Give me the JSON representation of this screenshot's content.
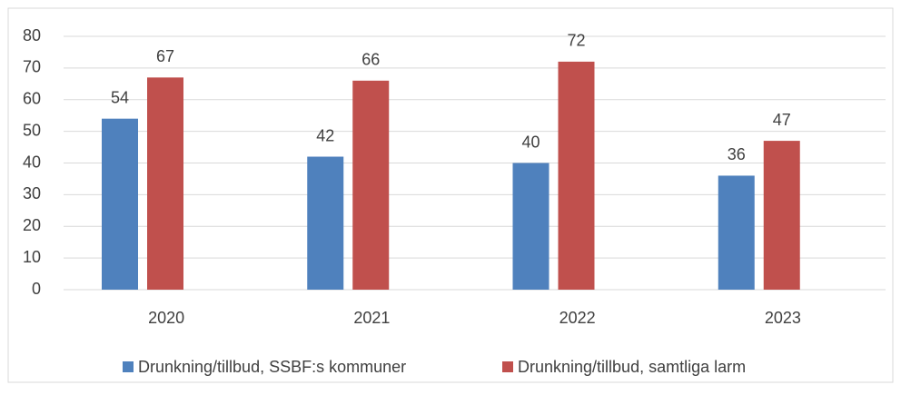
{
  "chart_data": {
    "type": "bar",
    "categories": [
      "2020",
      "2021",
      "2022",
      "2023"
    ],
    "series": [
      {
        "name": "Drunkning/tillbud, SSBF:s kommuner",
        "color": "#4f81bd",
        "values": [
          54,
          42,
          40,
          36
        ]
      },
      {
        "name": "Drunkning/tillbud, samtliga larm",
        "color": "#c0504d",
        "values": [
          67,
          66,
          72,
          47
        ]
      }
    ],
    "ylim": [
      0,
      80
    ],
    "yticks": [
      0,
      10,
      20,
      30,
      40,
      50,
      60,
      70,
      80
    ],
    "grid": true,
    "legend": "bottom"
  }
}
